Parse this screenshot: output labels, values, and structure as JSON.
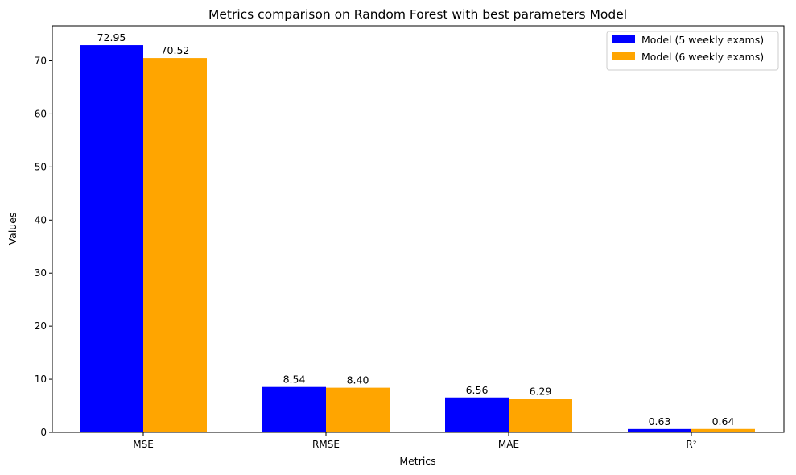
{
  "chart_data": {
    "type": "bar",
    "title": "Metrics comparison on Random Forest with best parameters Model",
    "xlabel": "Metrics",
    "ylabel": "Values",
    "categories": [
      "MSE",
      "RMSE",
      "MAE",
      "R²"
    ],
    "series": [
      {
        "name": "Model (5 weekly exams)",
        "color": "#0000ff",
        "values": [
          72.95,
          8.54,
          6.56,
          0.63
        ],
        "labels": [
          "72.95",
          "8.54",
          "6.56",
          "0.63"
        ]
      },
      {
        "name": "Model (6 weekly exams)",
        "color": "#ffa500",
        "values": [
          70.52,
          8.4,
          6.29,
          0.64
        ],
        "labels": [
          "70.52",
          "8.40",
          "6.29",
          "0.64"
        ]
      }
    ],
    "ylim": [
      0,
      76.6
    ],
    "yticks": [
      0,
      10,
      20,
      30,
      40,
      50,
      60,
      70
    ],
    "grid": false,
    "legend_position": "upper right"
  }
}
